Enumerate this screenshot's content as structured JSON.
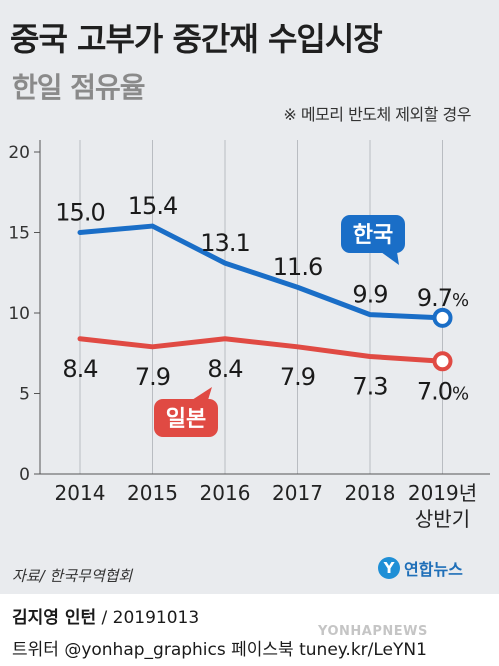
{
  "header": {
    "title": "중국 고부가 중간재 수입시장",
    "subtitle": "한일 점유율",
    "note": "※ 메모리 반도체 제외할 경우"
  },
  "footer": {
    "source": "자료/ 한국무역협회",
    "logo_text": "연합뉴스",
    "author": "김지영 인턴",
    "date": " / 20191013",
    "social": "트위터 @yonhap_graphics  페이스북 tuney.kr/LeYN1",
    "watermark": "YONHAPNEWS"
  },
  "chart_data": {
    "type": "line",
    "categories": [
      "2014",
      "2015",
      "2016",
      "2017",
      "2018",
      "2019년\n상반기"
    ],
    "category_lines": [
      [
        "2014"
      ],
      [
        "2015"
      ],
      [
        "2016"
      ],
      [
        "2017"
      ],
      [
        "2018"
      ],
      [
        "2019년",
        "상반기"
      ]
    ],
    "yticks": [
      0,
      5,
      10,
      15,
      20
    ],
    "ylim": [
      0,
      20
    ],
    "grid": "vertical",
    "series": [
      {
        "name": "한국",
        "color": "#1a6ec7",
        "values": [
          15.0,
          15.4,
          13.1,
          11.6,
          9.9,
          9.7
        ],
        "labels": [
          "15.0",
          "15.4",
          "13.1",
          "11.6",
          "9.9",
          "9.7%"
        ]
      },
      {
        "name": "일본",
        "color": "#e04a43",
        "values": [
          8.4,
          7.9,
          8.4,
          7.9,
          7.3,
          7.0
        ],
        "labels": [
          "8.4",
          "7.9",
          "8.4",
          "7.9",
          "7.3",
          "7.0%"
        ]
      }
    ]
  }
}
